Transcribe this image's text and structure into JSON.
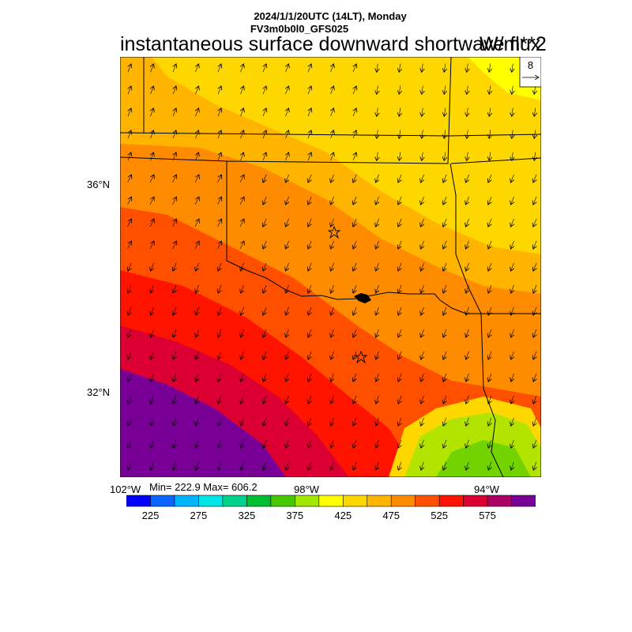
{
  "header": {
    "datetime": "2024/1/1/20UTC (14LT), Monday",
    "model": "FV3m0b0l0_GFS025",
    "title": "instantaneous surface downward shortwave flux",
    "units": "W/m**2"
  },
  "reference_vector": {
    "label": "8"
  },
  "axes": {
    "lat_labels": [
      "36°N",
      "32°N"
    ],
    "lon_labels": [
      "102°W",
      "98°W",
      "94°W"
    ]
  },
  "stats": {
    "text": "Min= 222.9 Max= 606.2",
    "min": 222.9,
    "max": 606.2
  },
  "colorbar": {
    "colors": [
      "#0000ff",
      "#0a64ff",
      "#00b4ff",
      "#00e6e6",
      "#00d28c",
      "#00be32",
      "#46c800",
      "#a0e600",
      "#ffff00",
      "#ffd700",
      "#ffb400",
      "#ff8c00",
      "#ff5000",
      "#ff1400",
      "#dc0032",
      "#aa0064",
      "#780096"
    ],
    "labels": [
      "225",
      "275",
      "325",
      "375",
      "425",
      "475",
      "525",
      "575"
    ]
  },
  "markers": [
    {
      "name": "star-oklahoma-city",
      "kind": "star"
    },
    {
      "name": "star-dallas",
      "kind": "star"
    }
  ]
}
